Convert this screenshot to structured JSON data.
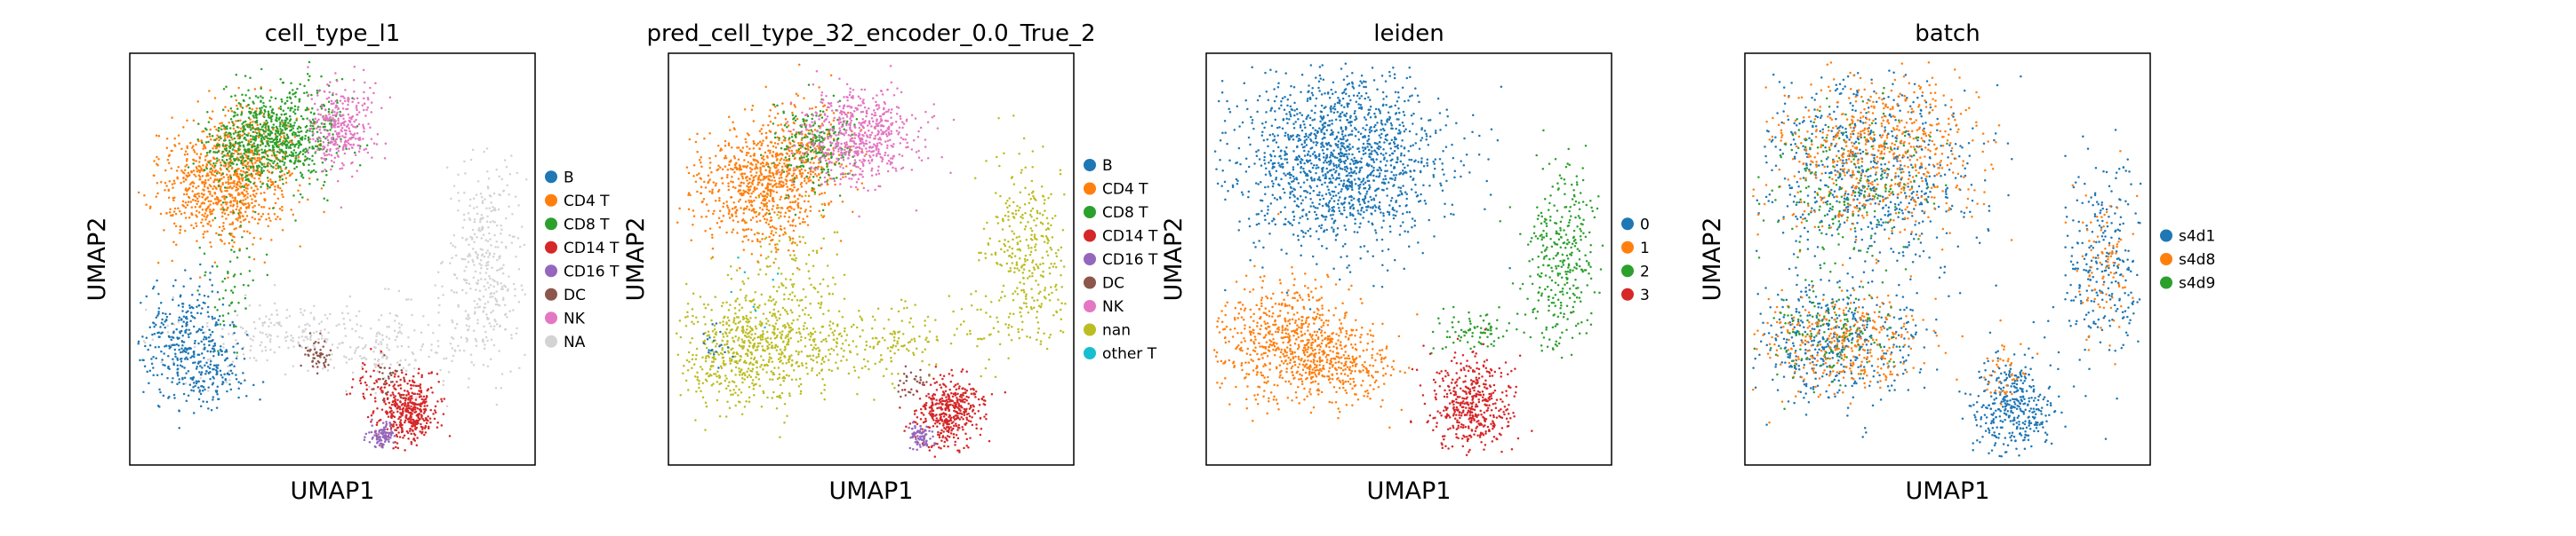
{
  "chart_data": [
    {
      "type": "scatter",
      "title": "cell_type_l1",
      "xlabel": "UMAP1",
      "ylabel": "UMAP2",
      "grid": false,
      "ticks": false,
      "legend_placement": "right-outside",
      "legend": [
        {
          "label": "B",
          "color": "#1f77b4"
        },
        {
          "label": "CD4 T",
          "color": "#ff7f0e"
        },
        {
          "label": "CD8 T",
          "color": "#2ca02c"
        },
        {
          "label": "CD14 T",
          "color": "#d62728"
        },
        {
          "label": "CD16 T",
          "color": "#9467bd"
        },
        {
          "label": "DC",
          "color": "#8c564b"
        },
        {
          "label": "NK",
          "color": "#e377c2"
        },
        {
          "label": "NA",
          "color": "#d3d3d3"
        }
      ],
      "clusters": [
        {
          "series": "NA",
          "x": 0.52,
          "y": 0.3,
          "sx": 0.3,
          "sy": 0.05,
          "n": 260
        },
        {
          "series": "NA",
          "x": 0.88,
          "y": 0.5,
          "sx": 0.05,
          "sy": 0.12,
          "n": 340
        },
        {
          "series": "NA",
          "x": 0.4,
          "y": 0.33,
          "sx": 0.1,
          "sy": 0.03,
          "n": 80
        },
        {
          "series": "NA",
          "x": 0.65,
          "y": 0.27,
          "sx": 0.06,
          "sy": 0.04,
          "n": 60
        },
        {
          "series": "B",
          "x": 0.14,
          "y": 0.3,
          "sx": 0.06,
          "sy": 0.07,
          "n": 340
        },
        {
          "series": "B",
          "x": 0.2,
          "y": 0.22,
          "sx": 0.05,
          "sy": 0.04,
          "n": 120
        },
        {
          "series": "CD4 T",
          "x": 0.22,
          "y": 0.68,
          "sx": 0.08,
          "sy": 0.07,
          "n": 700
        },
        {
          "series": "CD4 T",
          "x": 0.3,
          "y": 0.75,
          "sx": 0.06,
          "sy": 0.07,
          "n": 300
        },
        {
          "series": "CD8 T",
          "x": 0.38,
          "y": 0.8,
          "sx": 0.07,
          "sy": 0.06,
          "n": 650
        },
        {
          "series": "CD8 T",
          "x": 0.27,
          "y": 0.78,
          "sx": 0.05,
          "sy": 0.05,
          "n": 200
        },
        {
          "series": "CD8 T",
          "x": 0.25,
          "y": 0.45,
          "sx": 0.04,
          "sy": 0.08,
          "n": 60
        },
        {
          "series": "NK",
          "x": 0.52,
          "y": 0.82,
          "sx": 0.04,
          "sy": 0.05,
          "n": 320
        },
        {
          "series": "CD14 T",
          "x": 0.69,
          "y": 0.13,
          "sx": 0.04,
          "sy": 0.04,
          "n": 420
        },
        {
          "series": "CD14 T",
          "x": 0.6,
          "y": 0.2,
          "sx": 0.03,
          "sy": 0.03,
          "n": 30
        },
        {
          "series": "CD16 T",
          "x": 0.62,
          "y": 0.07,
          "sx": 0.015,
          "sy": 0.015,
          "n": 90
        },
        {
          "series": "DC",
          "x": 0.46,
          "y": 0.27,
          "sx": 0.02,
          "sy": 0.02,
          "n": 50
        },
        {
          "series": "DC",
          "x": 0.64,
          "y": 0.21,
          "sx": 0.015,
          "sy": 0.02,
          "n": 30
        }
      ]
    },
    {
      "type": "scatter",
      "title": "pred_cell_type_32_encoder_0.0_True_2",
      "xlabel": "UMAP1",
      "ylabel": "UMAP2",
      "grid": false,
      "ticks": false,
      "legend_placement": "right-outside",
      "legend": [
        {
          "label": "B",
          "color": "#1f77b4"
        },
        {
          "label": "CD4 T",
          "color": "#ff7f0e"
        },
        {
          "label": "CD8 T",
          "color": "#2ca02c"
        },
        {
          "label": "CD14 T",
          "color": "#d62728"
        },
        {
          "label": "CD16 T",
          "color": "#9467bd"
        },
        {
          "label": "DC",
          "color": "#8c564b"
        },
        {
          "label": "NK",
          "color": "#e377c2"
        },
        {
          "label": "nan",
          "color": "#bcbd22"
        },
        {
          "label": "other T",
          "color": "#17becf"
        }
      ],
      "clusters": [
        {
          "series": "nan",
          "x": 0.2,
          "y": 0.28,
          "sx": 0.09,
          "sy": 0.07,
          "n": 600
        },
        {
          "series": "nan",
          "x": 0.45,
          "y": 0.3,
          "sx": 0.18,
          "sy": 0.05,
          "n": 300
        },
        {
          "series": "nan",
          "x": 0.88,
          "y": 0.5,
          "sx": 0.05,
          "sy": 0.12,
          "n": 340
        },
        {
          "series": "nan",
          "x": 0.3,
          "y": 0.48,
          "sx": 0.06,
          "sy": 0.08,
          "n": 120
        },
        {
          "series": "CD4 T",
          "x": 0.22,
          "y": 0.68,
          "sx": 0.08,
          "sy": 0.07,
          "n": 700
        },
        {
          "series": "CD4 T",
          "x": 0.32,
          "y": 0.76,
          "sx": 0.06,
          "sy": 0.06,
          "n": 250
        },
        {
          "series": "CD8 T",
          "x": 0.36,
          "y": 0.78,
          "sx": 0.05,
          "sy": 0.05,
          "n": 220
        },
        {
          "series": "NK",
          "x": 0.47,
          "y": 0.8,
          "sx": 0.07,
          "sy": 0.06,
          "n": 600
        },
        {
          "series": "CD14 T",
          "x": 0.69,
          "y": 0.13,
          "sx": 0.04,
          "sy": 0.04,
          "n": 420
        },
        {
          "series": "CD16 T",
          "x": 0.62,
          "y": 0.07,
          "sx": 0.015,
          "sy": 0.015,
          "n": 80
        },
        {
          "series": "DC",
          "x": 0.6,
          "y": 0.2,
          "sx": 0.02,
          "sy": 0.02,
          "n": 30
        },
        {
          "series": "B",
          "x": 0.12,
          "y": 0.3,
          "sx": 0.02,
          "sy": 0.03,
          "n": 20
        },
        {
          "series": "other T",
          "x": 0.2,
          "y": 0.4,
          "sx": 0.05,
          "sy": 0.05,
          "n": 8
        }
      ]
    },
    {
      "type": "scatter",
      "title": "leiden",
      "xlabel": "UMAP1",
      "ylabel": "UMAP2",
      "grid": false,
      "ticks": false,
      "legend_placement": "right-outside",
      "legend": [
        {
          "label": "0",
          "color": "#1f77b4"
        },
        {
          "label": "1",
          "color": "#ff7f0e"
        },
        {
          "label": "2",
          "color": "#2ca02c"
        },
        {
          "label": "3",
          "color": "#d62728"
        }
      ],
      "clusters": [
        {
          "series": "0",
          "x": 0.33,
          "y": 0.74,
          "sx": 0.13,
          "sy": 0.11,
          "n": 1500
        },
        {
          "series": "1",
          "x": 0.2,
          "y": 0.3,
          "sx": 0.09,
          "sy": 0.07,
          "n": 650
        },
        {
          "series": "1",
          "x": 0.33,
          "y": 0.24,
          "sx": 0.07,
          "sy": 0.04,
          "n": 250
        },
        {
          "series": "2",
          "x": 0.88,
          "y": 0.5,
          "sx": 0.05,
          "sy": 0.12,
          "n": 340
        },
        {
          "series": "2",
          "x": 0.66,
          "y": 0.33,
          "sx": 0.05,
          "sy": 0.03,
          "n": 80
        },
        {
          "series": "3",
          "x": 0.65,
          "y": 0.15,
          "sx": 0.05,
          "sy": 0.06,
          "n": 450
        }
      ]
    },
    {
      "type": "scatter",
      "title": "batch",
      "xlabel": "UMAP1",
      "ylabel": "UMAP2",
      "grid": false,
      "ticks": false,
      "legend_placement": "right-outside",
      "legend": [
        {
          "label": "s4d1",
          "color": "#1f77b4"
        },
        {
          "label": "s4d8",
          "color": "#ff7f0e"
        },
        {
          "label": "s4d9",
          "color": "#2ca02c"
        }
      ],
      "clusters": [
        {
          "series": "s4d1",
          "x": 0.3,
          "y": 0.72,
          "sx": 0.13,
          "sy": 0.12,
          "n": 700
        },
        {
          "series": "s4d8",
          "x": 0.33,
          "y": 0.76,
          "sx": 0.12,
          "sy": 0.1,
          "n": 650
        },
        {
          "series": "s4d9",
          "x": 0.25,
          "y": 0.68,
          "sx": 0.1,
          "sy": 0.1,
          "n": 200
        },
        {
          "series": "s4d1",
          "x": 0.22,
          "y": 0.3,
          "sx": 0.11,
          "sy": 0.07,
          "n": 450
        },
        {
          "series": "s4d8",
          "x": 0.24,
          "y": 0.29,
          "sx": 0.1,
          "sy": 0.06,
          "n": 350
        },
        {
          "series": "s4d9",
          "x": 0.2,
          "y": 0.32,
          "sx": 0.08,
          "sy": 0.06,
          "n": 120
        },
        {
          "series": "s4d1",
          "x": 0.88,
          "y": 0.5,
          "sx": 0.05,
          "sy": 0.12,
          "n": 260
        },
        {
          "series": "s4d8",
          "x": 0.89,
          "y": 0.48,
          "sx": 0.04,
          "sy": 0.1,
          "n": 90
        },
        {
          "series": "s4d1",
          "x": 0.66,
          "y": 0.14,
          "sx": 0.05,
          "sy": 0.06,
          "n": 380
        },
        {
          "series": "s4d8",
          "x": 0.64,
          "y": 0.22,
          "sx": 0.03,
          "sy": 0.04,
          "n": 40
        }
      ]
    }
  ]
}
